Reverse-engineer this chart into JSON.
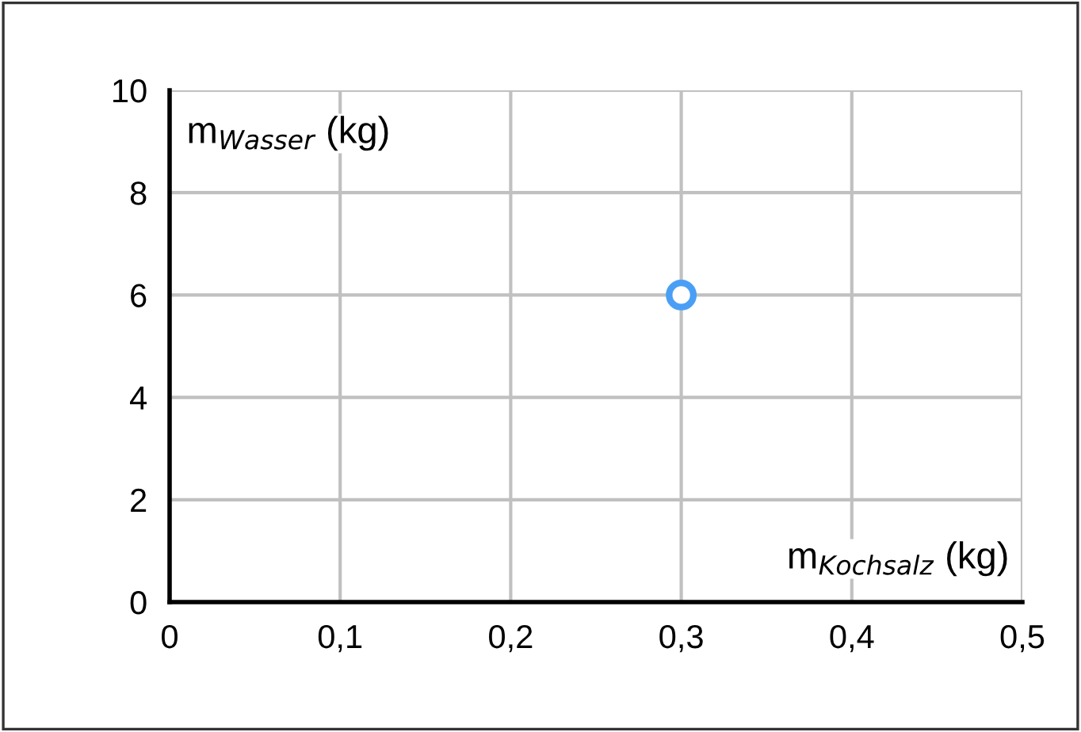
{
  "chart_data": {
    "type": "scatter",
    "xlabel": "m$_{Kochsalz}$ (kg)",
    "ylabel": "m$_{Wasser}$ (kg)",
    "series": [
      {
        "color": "#4a9ff5",
        "x": [
          0.3
        ],
        "values": [
          6
        ]
      }
    ],
    "xlim": [
      0,
      0.5
    ],
    "ylim": [
      0,
      10
    ],
    "xticks": [
      0,
      {
        "value": 0.1,
        "label": "0,1"
      },
      {
        "value": 0.2,
        "label": "0,2"
      },
      {
        "value": 0.3,
        "label": "0,3"
      },
      {
        "value": 0.4,
        "label": "0,4"
      },
      {
        "value": 0.5,
        "label": "0,5"
      }
    ],
    "yticks": [
      0,
      2,
      4,
      6,
      8,
      10
    ],
    "grid": true,
    "marker": "circle",
    "legend": false
  }
}
